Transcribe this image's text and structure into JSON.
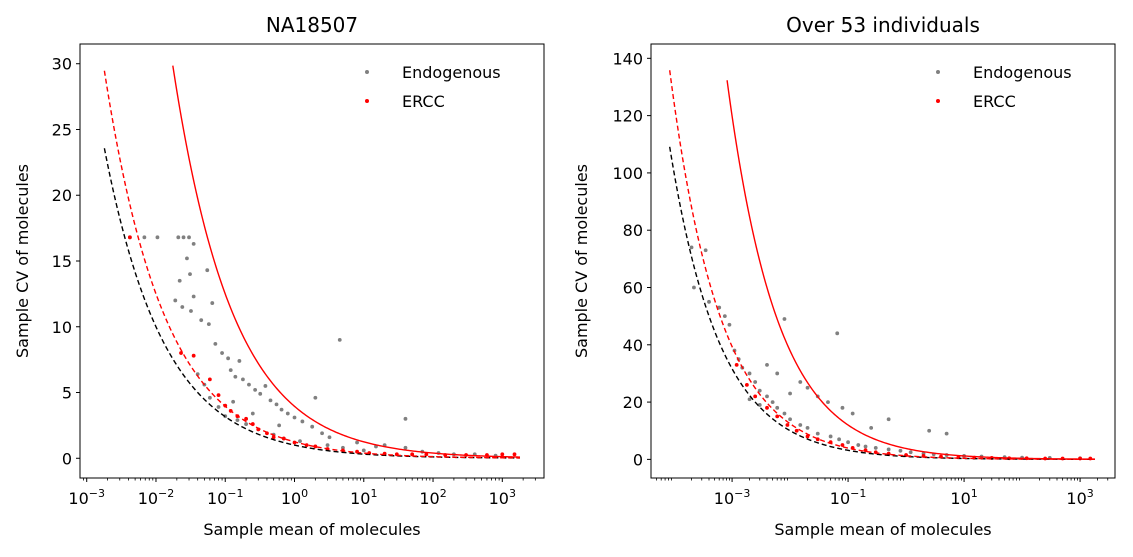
{
  "colors": {
    "endogenous": "#808080",
    "ercc": "#ff0000",
    "fit": "#000000",
    "axes": "#000000"
  },
  "chart_data": [
    {
      "type": "scatter",
      "title": "NA18507",
      "xlabel": "Sample mean of molecules",
      "ylabel": "Sample CV of molecules",
      "xscale": "log",
      "xlim": [
        0.0008,
        4000
      ],
      "ylim": [
        -1.5,
        31.5
      ],
      "xticks": [
        0.001,
        0.01,
        0.1,
        1,
        10,
        100,
        1000
      ],
      "xtick_labels": [
        {
          "base": "10",
          "exp": "−3"
        },
        {
          "base": "10",
          "exp": "−2"
        },
        {
          "base": "10",
          "exp": "−1"
        },
        {
          "base": "10",
          "exp": "0"
        },
        {
          "base": "10",
          "exp": "1"
        },
        {
          "base": "10",
          "exp": "2"
        },
        {
          "base": "10",
          "exp": "3"
        }
      ],
      "yticks": [
        0,
        5,
        10,
        15,
        20,
        25,
        30
      ],
      "ytick_labels": [
        "0",
        "5",
        "10",
        "15",
        "20",
        "25",
        "30"
      ],
      "legend": {
        "position": "top-right",
        "entries": [
          "Endogenous",
          "ERCC"
        ]
      },
      "grid": false,
      "series": [
        {
          "name": "Endogenous",
          "points": [
            [
              0.0042,
              16.8
            ],
            [
              0.0068,
              16.8
            ],
            [
              0.0105,
              16.8
            ],
            [
              0.021,
              16.8
            ],
            [
              0.025,
              16.8
            ],
            [
              0.03,
              16.8
            ],
            [
              0.035,
              16.3
            ],
            [
              0.028,
              15.2
            ],
            [
              0.031,
              14.0
            ],
            [
              0.055,
              14.3
            ],
            [
              0.022,
              13.5
            ],
            [
              0.019,
              12.0
            ],
            [
              0.024,
              11.5
            ],
            [
              0.032,
              11.2
            ],
            [
              0.035,
              12.3
            ],
            [
              0.045,
              10.5
            ],
            [
              0.058,
              10.2
            ],
            [
              0.065,
              11.8
            ],
            [
              0.072,
              8.7
            ],
            [
              0.09,
              8.0
            ],
            [
              0.11,
              7.6
            ],
            [
              0.12,
              6.7
            ],
            [
              0.14,
              6.2
            ],
            [
              0.16,
              7.4
            ],
            [
              0.18,
              6.0
            ],
            [
              0.22,
              5.6
            ],
            [
              0.27,
              5.2
            ],
            [
              0.32,
              4.9
            ],
            [
              0.38,
              5.5
            ],
            [
              0.45,
              4.4
            ],
            [
              0.55,
              4.1
            ],
            [
              0.65,
              3.7
            ],
            [
              0.8,
              3.4
            ],
            [
              1.0,
              3.1
            ],
            [
              1.3,
              2.8
            ],
            [
              1.8,
              2.4
            ],
            [
              2.5,
              1.9
            ],
            [
              3.2,
              1.6
            ],
            [
              4.5,
              9.0
            ],
            [
              2.0,
              4.6
            ],
            [
              8,
              1.2
            ],
            [
              15,
              0.9
            ],
            [
              20,
              1.0
            ],
            [
              40,
              3.0
            ],
            [
              40,
              0.8
            ],
            [
              70,
              0.5
            ],
            [
              120,
              0.4
            ],
            [
              200,
              0.3
            ],
            [
              400,
              0.3
            ],
            [
              800,
              0.2
            ],
            [
              0.08,
              3.9
            ],
            [
              0.1,
              3.2
            ],
            [
              0.15,
              2.9
            ],
            [
              0.2,
              2.6
            ],
            [
              0.3,
              2.2
            ],
            [
              0.5,
              1.8
            ],
            [
              0.7,
              1.5
            ],
            [
              1.2,
              1.3
            ],
            [
              3,
              1.0
            ],
            [
              5,
              0.8
            ],
            [
              10,
              0.6
            ],
            [
              0.06,
              4.6
            ],
            [
              0.05,
              5.6
            ],
            [
              0.04,
              6.4
            ],
            [
              0.13,
              4.3
            ],
            [
              0.25,
              3.4
            ],
            [
              0.6,
              2.5
            ]
          ]
        },
        {
          "name": "ERCC",
          "points": [
            [
              0.0042,
              16.8
            ],
            [
              0.023,
              8.0
            ],
            [
              0.035,
              7.8
            ],
            [
              0.06,
              6.0
            ],
            [
              0.08,
              4.8
            ],
            [
              0.1,
              4.0
            ],
            [
              0.12,
              3.6
            ],
            [
              0.15,
              3.2
            ],
            [
              0.2,
              3.0
            ],
            [
              0.25,
              2.6
            ],
            [
              0.3,
              2.2
            ],
            [
              0.4,
              1.9
            ],
            [
              0.5,
              1.6
            ],
            [
              0.7,
              1.5
            ],
            [
              1,
              1.2
            ],
            [
              1.5,
              1.0
            ],
            [
              2,
              0.9
            ],
            [
              3,
              0.7
            ],
            [
              5,
              0.6
            ],
            [
              8,
              0.5
            ],
            [
              12,
              0.4
            ],
            [
              20,
              0.35
            ],
            [
              30,
              0.3
            ],
            [
              50,
              0.3
            ],
            [
              80,
              0.3
            ],
            [
              150,
              0.25
            ],
            [
              300,
              0.25
            ],
            [
              600,
              0.25
            ],
            [
              1000,
              0.3
            ],
            [
              1500,
              0.3
            ]
          ]
        }
      ],
      "curves": [
        {
          "name": "",
          "style": "dashed",
          "color": "#000000",
          "k": 1.0,
          "x_range": [
            0.0018,
            1800
          ]
        },
        {
          "name": "",
          "style": "dashed",
          "color": "#ff0000",
          "k": 1.25,
          "x_range": [
            0.0018,
            1800
          ]
        },
        {
          "name": "",
          "style": "solid",
          "color": "#ff0000",
          "k": 3.95,
          "x_range": [
            0.0175,
            1800
          ]
        }
      ]
    },
    {
      "type": "scatter",
      "title": "Over 53 individuals",
      "xlabel": "Sample mean of molecules",
      "ylabel": "Sample CV of molecules",
      "xscale": "log",
      "xlim": [
        4e-05,
        4000
      ],
      "ylim": [
        -6.5,
        145
      ],
      "xticks": [
        0.001,
        0.1,
        10,
        1000
      ],
      "xtick_labels": [
        {
          "base": "10",
          "exp": "−3"
        },
        {
          "base": "10",
          "exp": "−1"
        },
        {
          "base": "10",
          "exp": "1"
        },
        {
          "base": "10",
          "exp": "3"
        }
      ],
      "yticks": [
        0,
        20,
        40,
        60,
        80,
        100,
        120,
        140
      ],
      "ytick_labels": [
        "0",
        "20",
        "40",
        "60",
        "80",
        "100",
        "120",
        "140"
      ],
      "legend": {
        "position": "top-right",
        "entries": [
          "Endogenous",
          "ERCC"
        ]
      },
      "grid": false,
      "series": [
        {
          "name": "Endogenous",
          "points": [
            [
              0.0002,
              74
            ],
            [
              0.00035,
              73
            ],
            [
              0.00022,
              60
            ],
            [
              0.0004,
              55
            ],
            [
              0.0006,
              53
            ],
            [
              0.00075,
              50
            ],
            [
              0.0009,
              47
            ],
            [
              0.0011,
              38
            ],
            [
              0.0013,
              35
            ],
            [
              0.0015,
              32
            ],
            [
              0.002,
              30
            ],
            [
              0.0025,
              27
            ],
            [
              0.003,
              24
            ],
            [
              0.004,
              22
            ],
            [
              0.005,
              20
            ],
            [
              0.006,
              18
            ],
            [
              0.008,
              49
            ],
            [
              0.008,
              16
            ],
            [
              0.01,
              14
            ],
            [
              0.015,
              12
            ],
            [
              0.02,
              11
            ],
            [
              0.03,
              9
            ],
            [
              0.05,
              8
            ],
            [
              0.07,
              7
            ],
            [
              0.1,
              6
            ],
            [
              0.15,
              5
            ],
            [
              0.2,
              4.5
            ],
            [
              0.3,
              4
            ],
            [
              0.5,
              3.5
            ],
            [
              0.8,
              3
            ],
            [
              1.2,
              2.5
            ],
            [
              2,
              2
            ],
            [
              3,
              1.8
            ],
            [
              5,
              1.5
            ],
            [
              10,
              1.2
            ],
            [
              20,
              1
            ],
            [
              50,
              0.8
            ],
            [
              100,
              0.6
            ],
            [
              300,
              0.5
            ],
            [
              1000,
              0.4
            ],
            [
              0.065,
              44
            ],
            [
              0.03,
              22
            ],
            [
              0.045,
              20
            ],
            [
              0.02,
              25
            ],
            [
              0.015,
              27
            ],
            [
              0.006,
              30
            ],
            [
              0.004,
              33
            ],
            [
              0.5,
              14
            ],
            [
              0.25,
              11
            ],
            [
              2.5,
              10
            ],
            [
              5,
              9
            ],
            [
              0.12,
              16
            ],
            [
              0.08,
              18
            ],
            [
              0.002,
              21
            ],
            [
              0.003,
              19
            ],
            [
              0.01,
              23
            ]
          ]
        },
        {
          "name": "ERCC",
          "points": [
            [
              0.0012,
              33
            ],
            [
              0.0018,
              26
            ],
            [
              0.0025,
              22
            ],
            [
              0.004,
              18
            ],
            [
              0.006,
              15
            ],
            [
              0.009,
              12
            ],
            [
              0.013,
              10
            ],
            [
              0.02,
              8
            ],
            [
              0.03,
              7
            ],
            [
              0.05,
              6
            ],
            [
              0.08,
              5
            ],
            [
              0.12,
              4
            ],
            [
              0.2,
              3.2
            ],
            [
              0.3,
              2.5
            ],
            [
              0.5,
              2
            ],
            [
              1,
              1.5
            ],
            [
              2,
              1.2
            ],
            [
              4,
              1
            ],
            [
              8,
              0.8
            ],
            [
              15,
              0.6
            ],
            [
              30,
              0.5
            ],
            [
              60,
              0.4
            ],
            [
              120,
              0.4
            ],
            [
              250,
              0.3
            ],
            [
              500,
              0.3
            ],
            [
              1000,
              0.3
            ],
            [
              1500,
              0.3
            ]
          ]
        }
      ],
      "curves": [
        {
          "name": "",
          "style": "dashed",
          "color": "#000000",
          "k": 1.0,
          "x_range": [
            8.4e-05,
            1800
          ]
        },
        {
          "name": "",
          "style": "dashed",
          "color": "#ff0000",
          "k": 1.245,
          "x_range": [
            8.4e-05,
            1800
          ]
        },
        {
          "name": "",
          "style": "solid",
          "color": "#ff0000",
          "k": 3.79,
          "x_range": [
            0.00082,
            1800
          ]
        }
      ]
    }
  ]
}
